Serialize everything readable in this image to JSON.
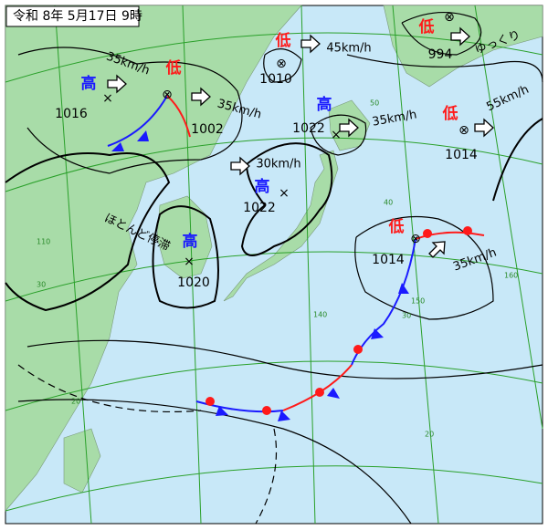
{
  "title": "令和 8年 5月17日 9時",
  "systems": [
    {
      "kind": "高",
      "pressure": 1016
    },
    {
      "kind": "低",
      "pressure": 1002
    },
    {
      "kind": "低",
      "pressure": 1010
    },
    {
      "kind": "低",
      "pressure": 994
    },
    {
      "kind": "高",
      "pressure": 1022
    },
    {
      "kind": "低",
      "pressure": 1014
    },
    {
      "kind": "高",
      "pressure": 1022
    },
    {
      "kind": "高",
      "pressure": 1020
    },
    {
      "kind": "低",
      "pressure": 1014
    }
  ],
  "motions": [
    "35km/h",
    "35km/h",
    "45km/h",
    "ゆっくり",
    "35km/h",
    "55km/h",
    "30km/h",
    "ほとんど停滞",
    "35km/h"
  ],
  "grid_labels": [
    "50",
    "40",
    "30",
    "20",
    "110",
    "140",
    "150",
    "160",
    "30",
    "20"
  ]
}
